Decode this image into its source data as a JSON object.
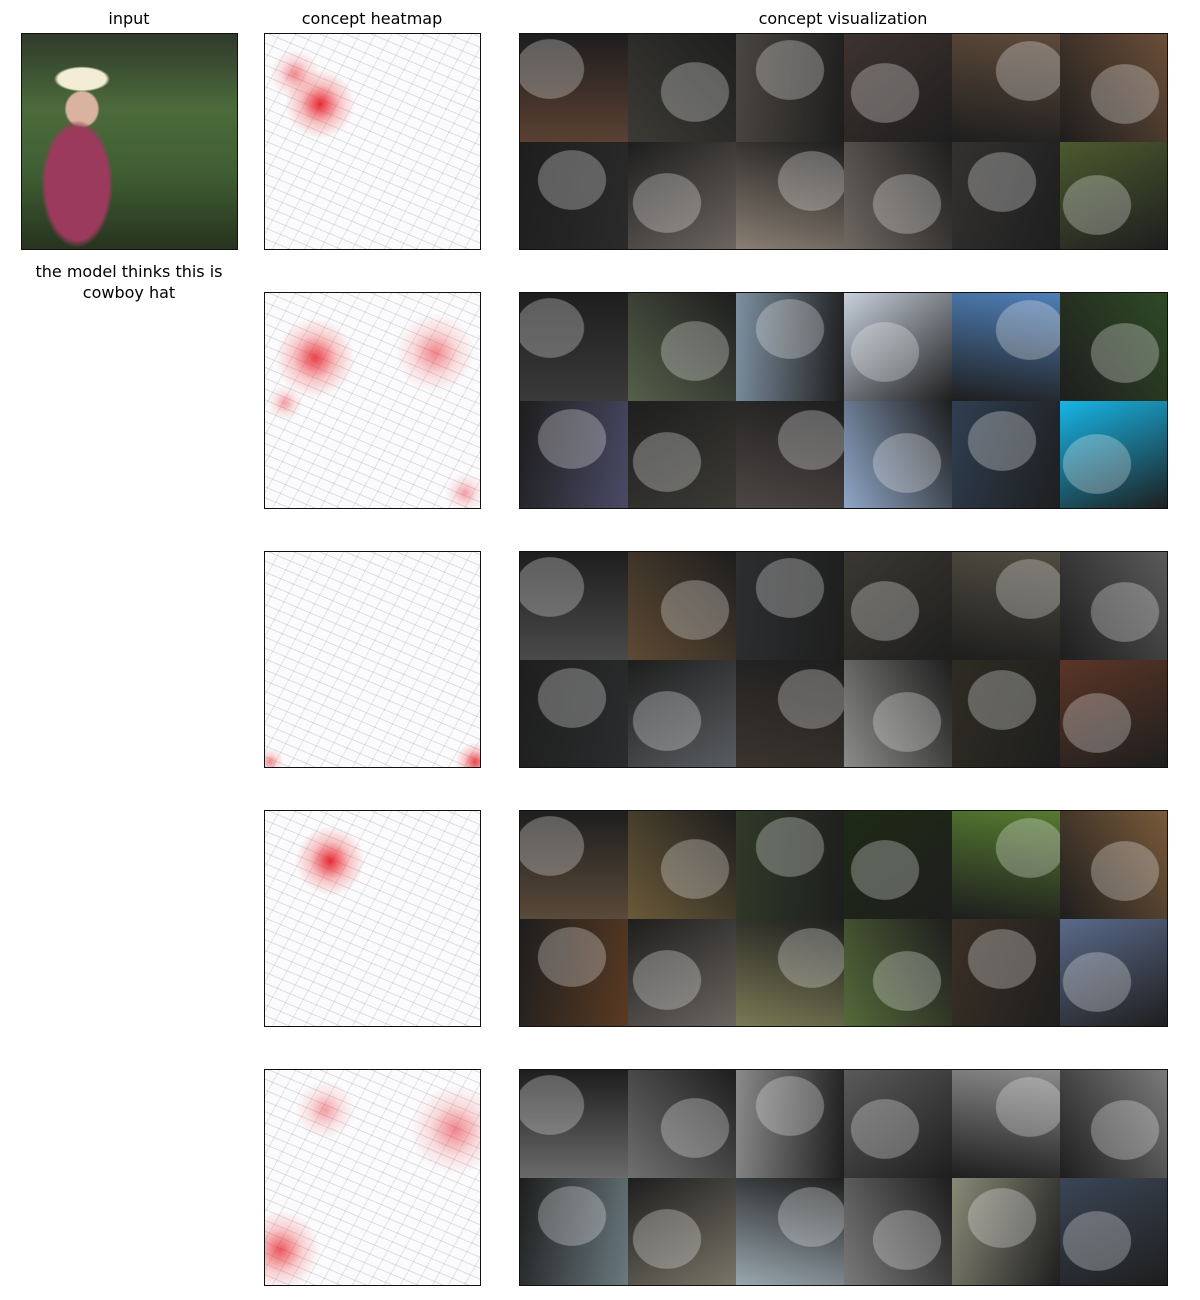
{
  "columns": {
    "input": "input",
    "heatmap": "concept heatmap",
    "visualization": "concept visualization"
  },
  "caption": [
    "the model thinks this is",
    "cowboy hat"
  ]
}
